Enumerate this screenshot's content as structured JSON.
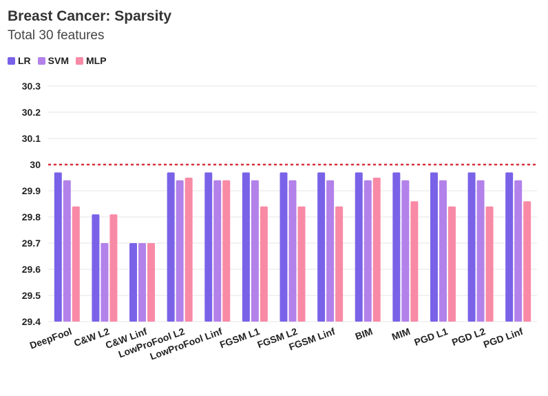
{
  "title": "Breast Cancer: Sparsity",
  "subtitle": "Total 30 features",
  "colors": {
    "LR": "#7a62e8",
    "SVM": "#b381ea",
    "MLP": "#f88aa6",
    "reference": "#d9303d",
    "grid": "#e6e6e6"
  },
  "chart_data": {
    "type": "bar",
    "title": "Breast Cancer: Sparsity",
    "subtitle": "Total 30 features",
    "xlabel": "",
    "ylabel": "",
    "ylim": [
      29.4,
      30.3
    ],
    "yticks": [
      "29.4",
      "29.5",
      "29.6",
      "29.7",
      "29.8",
      "29.9",
      "30",
      "30.1",
      "30.2",
      "30.3"
    ],
    "reference_line": 30,
    "legend_position": "top-left",
    "grid": true,
    "categories": [
      "DeepFool",
      "C&W L2",
      "C&W Linf",
      "LowProFool L2",
      "LowProFool Linf",
      "FGSM L1",
      "FGSM L2",
      "FGSM Linf",
      "BIM",
      "MIM",
      "PGD L1",
      "PGD L2",
      "PGD Linf"
    ],
    "series": [
      {
        "name": "LR",
        "values": [
          29.97,
          29.81,
          29.7,
          29.97,
          29.97,
          29.97,
          29.97,
          29.97,
          29.97,
          29.97,
          29.97,
          29.97,
          29.97
        ]
      },
      {
        "name": "SVM",
        "values": [
          29.94,
          29.7,
          29.7,
          29.94,
          29.94,
          29.94,
          29.94,
          29.94,
          29.94,
          29.94,
          29.94,
          29.94,
          29.94
        ]
      },
      {
        "name": "MLP",
        "values": [
          29.84,
          29.81,
          29.7,
          29.95,
          29.94,
          29.84,
          29.84,
          29.84,
          29.95,
          29.86,
          29.84,
          29.84,
          29.86
        ]
      }
    ]
  }
}
